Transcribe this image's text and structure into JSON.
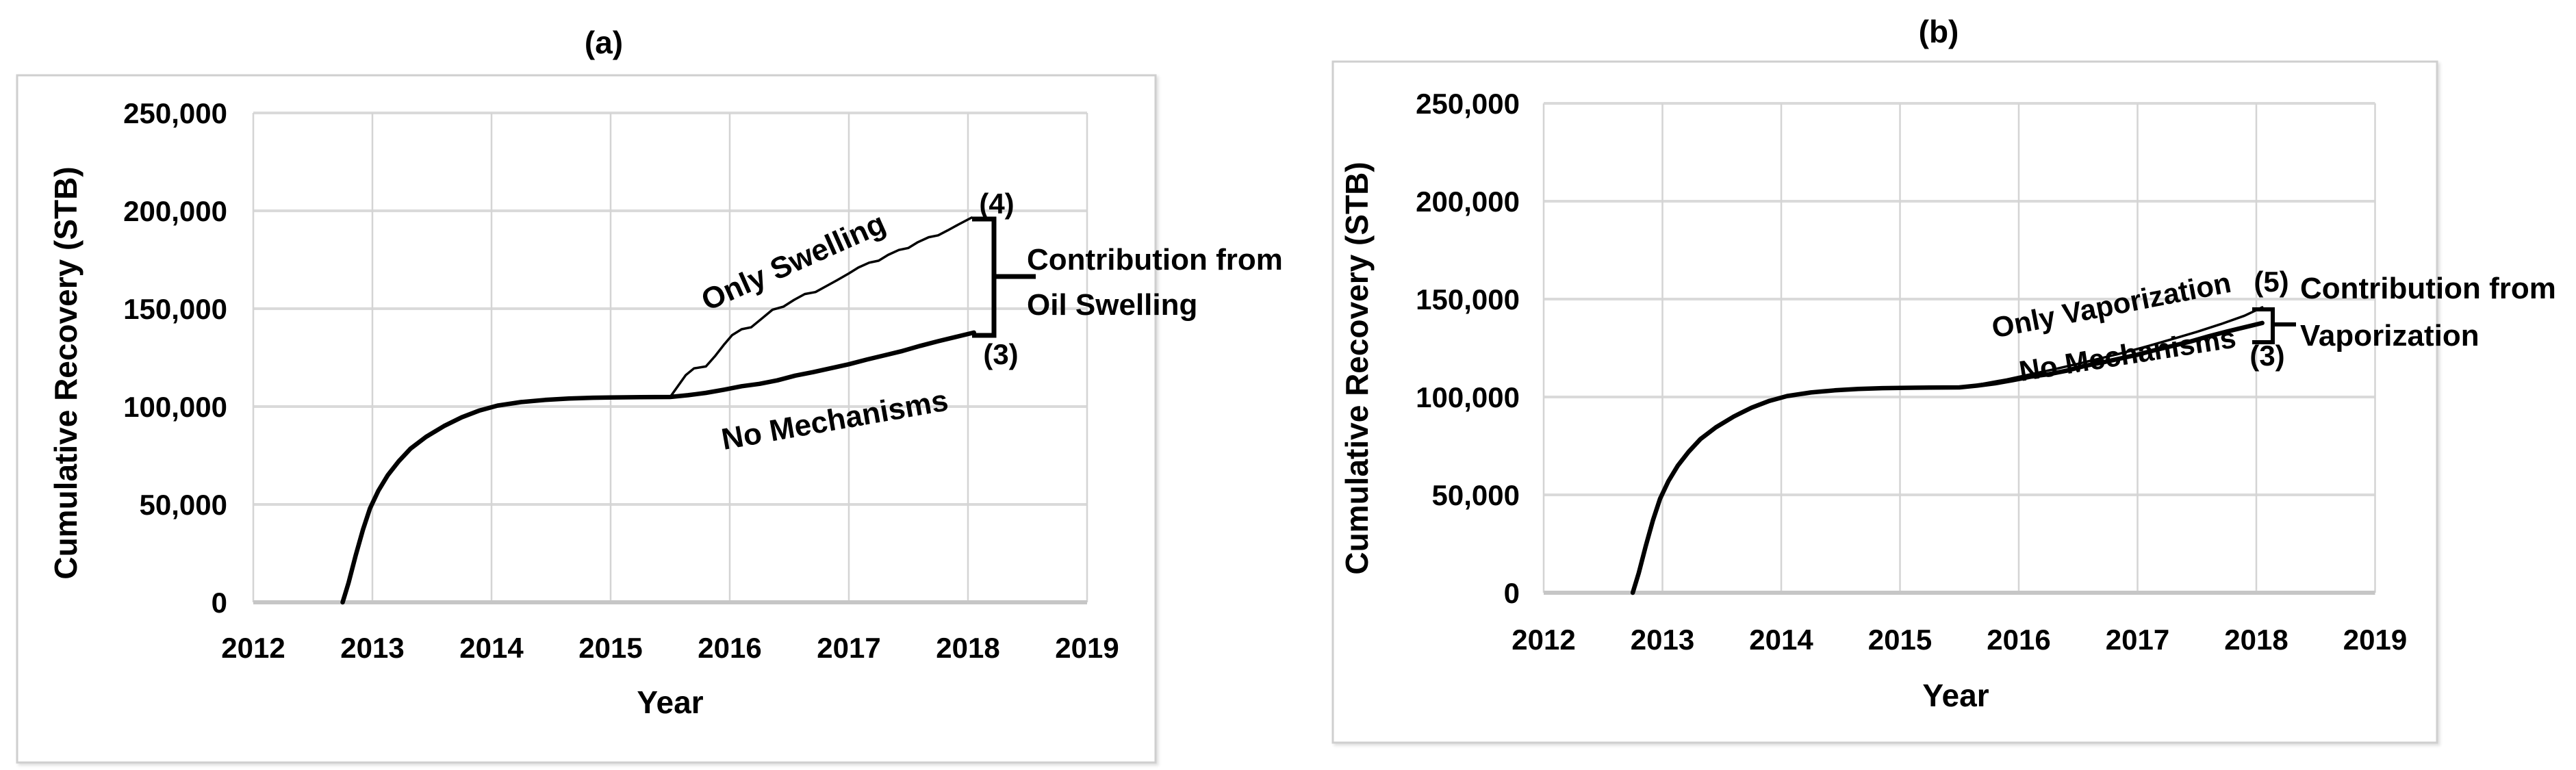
{
  "colors": {
    "curve": "#000000",
    "gridline_h": "#dadada",
    "gridline_v": "#d4d4d4",
    "axis_baseline": "#c6c6c6",
    "panel_border": "#cfcfcf",
    "text": "#000000",
    "background": "#ffffff"
  },
  "chart_data": [
    {
      "panel": "a",
      "type": "line",
      "title": "(a)",
      "xlabel": "Year",
      "ylabel": "Cumulative Recovery (STB)",
      "xlim": [
        2012,
        2019
      ],
      "ylim": [
        0,
        250000
      ],
      "grid": true,
      "legend_position": "none",
      "x_ticks": [
        2012,
        2013,
        2014,
        2015,
        2016,
        2017,
        2018,
        2019
      ],
      "y_ticks": [
        {
          "value": 0,
          "label": "0"
        },
        {
          "value": 50000,
          "label": "50,000"
        },
        {
          "value": 100000,
          "label": "100,000"
        },
        {
          "value": 150000,
          "label": "150,000"
        },
        {
          "value": 200000,
          "label": "200,000"
        },
        {
          "value": 250000,
          "label": "250,000"
        }
      ],
      "annotation": {
        "lines": [
          "Contribution from",
          "Oil Swelling"
        ]
      },
      "series": [
        {
          "name": "No Mechanisms",
          "end_label": "(3)",
          "style": "thick",
          "points": [
            [
              2012.75,
              0
            ],
            [
              2012.8,
              10000
            ],
            [
              2012.86,
              24000
            ],
            [
              2012.92,
              37000
            ],
            [
              2012.98,
              48000
            ],
            [
              2013.05,
              57000
            ],
            [
              2013.13,
              65000
            ],
            [
              2013.22,
              72000
            ],
            [
              2013.32,
              78500
            ],
            [
              2013.45,
              84500
            ],
            [
              2013.6,
              90000
            ],
            [
              2013.75,
              94500
            ],
            [
              2013.9,
              98000
            ],
            [
              2014.05,
              100500
            ],
            [
              2014.25,
              102300
            ],
            [
              2014.45,
              103400
            ],
            [
              2014.65,
              104100
            ],
            [
              2014.85,
              104500
            ],
            [
              2015.05,
              104700
            ],
            [
              2015.25,
              104800
            ],
            [
              2015.5,
              104900
            ],
            [
              2015.65,
              105800
            ],
            [
              2015.8,
              107000
            ],
            [
              2015.95,
              108600
            ],
            [
              2016.1,
              110400
            ],
            [
              2016.25,
              111600
            ],
            [
              2016.4,
              113400
            ],
            [
              2016.55,
              115800
            ],
            [
              2016.7,
              117600
            ],
            [
              2016.85,
              119600
            ],
            [
              2017.0,
              121600
            ],
            [
              2017.15,
              124000
            ],
            [
              2017.3,
              126200
            ],
            [
              2017.45,
              128400
            ],
            [
              2017.6,
              131000
            ],
            [
              2017.75,
              133400
            ],
            [
              2017.9,
              135600
            ],
            [
              2018.05,
              137800
            ]
          ]
        },
        {
          "name": "Only Swelling",
          "end_label": "(4)",
          "style": "thin",
          "points": [
            [
              2012.75,
              0
            ],
            [
              2012.8,
              10000
            ],
            [
              2012.86,
              24000
            ],
            [
              2012.92,
              37000
            ],
            [
              2012.98,
              48000
            ],
            [
              2013.05,
              57000
            ],
            [
              2013.13,
              65000
            ],
            [
              2013.22,
              72000
            ],
            [
              2013.32,
              78500
            ],
            [
              2013.45,
              84500
            ],
            [
              2013.6,
              90000
            ],
            [
              2013.75,
              94500
            ],
            [
              2013.9,
              98000
            ],
            [
              2014.05,
              100500
            ],
            [
              2014.25,
              102300
            ],
            [
              2014.45,
              103400
            ],
            [
              2014.65,
              104100
            ],
            [
              2014.85,
              104500
            ],
            [
              2015.05,
              104700
            ],
            [
              2015.25,
              104800
            ],
            [
              2015.5,
              104900
            ],
            [
              2015.56,
              110000
            ],
            [
              2015.63,
              116000
            ],
            [
              2015.7,
              119500
            ],
            [
              2015.8,
              120500
            ],
            [
              2015.88,
              126000
            ],
            [
              2015.95,
              131500
            ],
            [
              2016.02,
              136500
            ],
            [
              2016.1,
              139500
            ],
            [
              2016.18,
              140500
            ],
            [
              2016.27,
              145000
            ],
            [
              2016.36,
              149500
            ],
            [
              2016.45,
              151000
            ],
            [
              2016.54,
              154500
            ],
            [
              2016.63,
              157500
            ],
            [
              2016.72,
              158500
            ],
            [
              2016.81,
              161500
            ],
            [
              2016.9,
              164500
            ],
            [
              2017.0,
              168000
            ],
            [
              2017.08,
              171000
            ],
            [
              2017.17,
              173500
            ],
            [
              2017.25,
              174500
            ],
            [
              2017.33,
              177500
            ],
            [
              2017.42,
              180000
            ],
            [
              2017.5,
              181000
            ],
            [
              2017.58,
              184000
            ],
            [
              2017.67,
              186500
            ],
            [
              2017.75,
              187500
            ],
            [
              2017.83,
              190000
            ],
            [
              2017.92,
              193000
            ],
            [
              2018.03,
              196500
            ]
          ]
        }
      ]
    },
    {
      "panel": "b",
      "type": "line",
      "title": "(b)",
      "xlabel": "Year",
      "ylabel": "Cumulative Recovery (STB)",
      "xlim": [
        2012,
        2019
      ],
      "ylim": [
        0,
        250000
      ],
      "grid": true,
      "legend_position": "none",
      "x_ticks": [
        2012,
        2013,
        2014,
        2015,
        2016,
        2017,
        2018,
        2019
      ],
      "y_ticks": [
        {
          "value": 0,
          "label": "0"
        },
        {
          "value": 50000,
          "label": "50,000"
        },
        {
          "value": 100000,
          "label": "100,000"
        },
        {
          "value": 150000,
          "label": "150,000"
        },
        {
          "value": 200000,
          "label": "200,000"
        },
        {
          "value": 250000,
          "label": "250,000"
        }
      ],
      "annotation": {
        "lines": [
          "Contribution from",
          "Vaporization"
        ]
      },
      "series": [
        {
          "name": "No Mechanisms",
          "end_label": "(3)",
          "style": "thick",
          "points": [
            [
              2012.75,
              0
            ],
            [
              2012.8,
              10000
            ],
            [
              2012.86,
              24000
            ],
            [
              2012.92,
              37000
            ],
            [
              2012.98,
              48000
            ],
            [
              2013.05,
              57000
            ],
            [
              2013.13,
              65000
            ],
            [
              2013.22,
              72000
            ],
            [
              2013.32,
              78500
            ],
            [
              2013.45,
              84500
            ],
            [
              2013.6,
              90000
            ],
            [
              2013.75,
              94500
            ],
            [
              2013.9,
              98000
            ],
            [
              2014.05,
              100500
            ],
            [
              2014.25,
              102300
            ],
            [
              2014.45,
              103400
            ],
            [
              2014.65,
              104100
            ],
            [
              2014.85,
              104500
            ],
            [
              2015.05,
              104700
            ],
            [
              2015.25,
              104800
            ],
            [
              2015.5,
              104900
            ],
            [
              2015.65,
              105800
            ],
            [
              2015.8,
              107000
            ],
            [
              2015.95,
              108600
            ],
            [
              2016.1,
              110400
            ],
            [
              2016.25,
              111600
            ],
            [
              2016.4,
              113400
            ],
            [
              2016.55,
              115800
            ],
            [
              2016.7,
              117600
            ],
            [
              2016.85,
              119600
            ],
            [
              2017.0,
              121600
            ],
            [
              2017.15,
              124000
            ],
            [
              2017.3,
              126200
            ],
            [
              2017.45,
              128400
            ],
            [
              2017.6,
              131000
            ],
            [
              2017.75,
              133400
            ],
            [
              2017.9,
              135600
            ],
            [
              2018.05,
              137800
            ]
          ]
        },
        {
          "name": "Only Vaporization",
          "end_label": "(5)",
          "style": "thin",
          "points": [
            [
              2012.75,
              0
            ],
            [
              2012.8,
              10000
            ],
            [
              2012.86,
              24000
            ],
            [
              2012.92,
              37000
            ],
            [
              2012.98,
              48000
            ],
            [
              2013.05,
              57000
            ],
            [
              2013.13,
              65000
            ],
            [
              2013.22,
              72000
            ],
            [
              2013.32,
              78500
            ],
            [
              2013.45,
              84500
            ],
            [
              2013.6,
              90000
            ],
            [
              2013.75,
              94500
            ],
            [
              2013.9,
              98000
            ],
            [
              2014.05,
              100500
            ],
            [
              2014.25,
              102300
            ],
            [
              2014.45,
              103400
            ],
            [
              2014.65,
              104100
            ],
            [
              2014.85,
              104500
            ],
            [
              2015.05,
              104700
            ],
            [
              2015.25,
              104800
            ],
            [
              2015.5,
              104900
            ],
            [
              2015.7,
              106800
            ],
            [
              2015.9,
              109000
            ],
            [
              2016.1,
              111600
            ],
            [
              2016.3,
              114200
            ],
            [
              2016.5,
              117000
            ],
            [
              2016.7,
              119900
            ],
            [
              2016.9,
              122900
            ],
            [
              2017.1,
              126200
            ],
            [
              2017.3,
              129700
            ],
            [
              2017.5,
              133300
            ],
            [
              2017.7,
              137200
            ],
            [
              2017.9,
              141500
            ],
            [
              2018.05,
              145800
            ]
          ]
        }
      ]
    }
  ]
}
